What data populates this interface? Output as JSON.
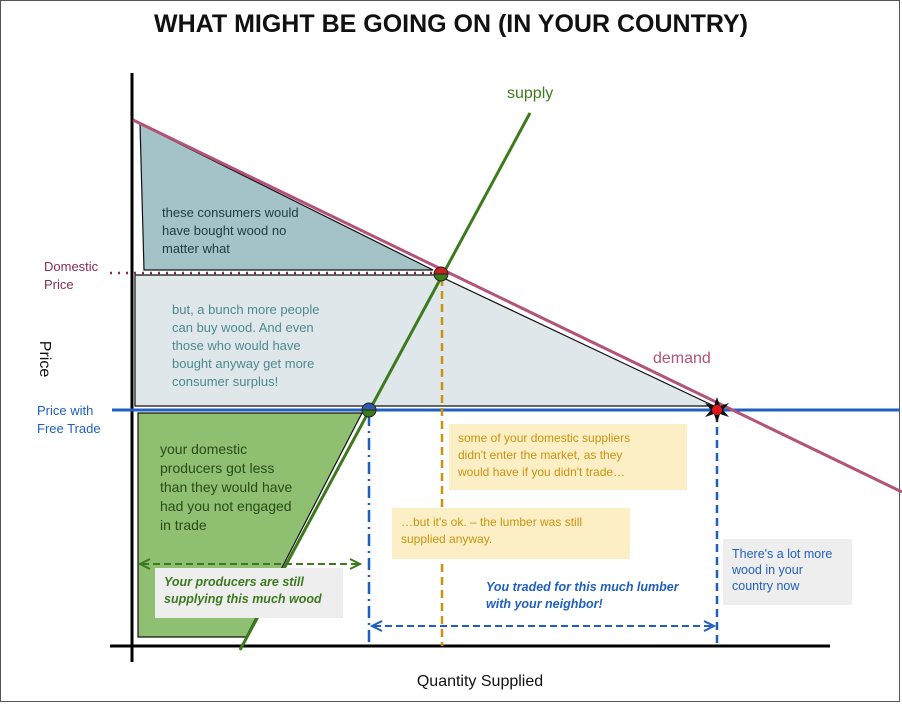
{
  "title": "WHAT MIGHT BE GOING ON (IN YOUR COUNTRY)",
  "axes": {
    "x_label": "Quantity Supplied",
    "y_label": "Price"
  },
  "curves": {
    "supply_label": "supply",
    "demand_label": "demand"
  },
  "price_labels": {
    "domestic": [
      "Domestic",
      "Price"
    ],
    "free_trade": [
      "Price with",
      "Free Trade"
    ]
  },
  "region_notes": {
    "top_consumers": [
      "these consumers would",
      "have bought wood no",
      "matter what"
    ],
    "more_people": [
      "but, a bunch more people",
      "can buy wood. And even",
      "those who would have",
      "bought anyway get more",
      "consumer surplus!"
    ],
    "domestic_producers": [
      "your domestic",
      "producers got less",
      "than they would have",
      "had you not engaged",
      "in trade"
    ]
  },
  "callouts": {
    "suppliers_not_enter": [
      "some of your domestic suppliers",
      "didn't enter the market, as they",
      "would have if you didn't trade…"
    ],
    "lumber_still_supplied": [
      "…but it's ok. – the lumber was still",
      "supplied anyway."
    ],
    "producers_supplying": [
      "Your producers are still",
      "supplying this much wood"
    ],
    "traded_lumber": [
      "You traded for this much lumber",
      "with your neighbor!"
    ],
    "more_wood": [
      "There's a lot more",
      "wood in your",
      "country now"
    ]
  },
  "colors": {
    "supply": "#3d7a1e",
    "demand": "#b5527a",
    "free_trade_line": "#1f5fbf",
    "domestic_line": "#8a2a55",
    "upper_fill": "#a4c3c8",
    "lower_fill": "#dfe7eb",
    "producer_fill": "#8fc072",
    "orange": "#c9930e",
    "yellow_box": "#fcefc6",
    "grey_box": "#eeeeee",
    "teal_text": "#4b8a90",
    "dark_green_text": "#2a4a18",
    "blue_text": "#1f5fbf"
  }
}
